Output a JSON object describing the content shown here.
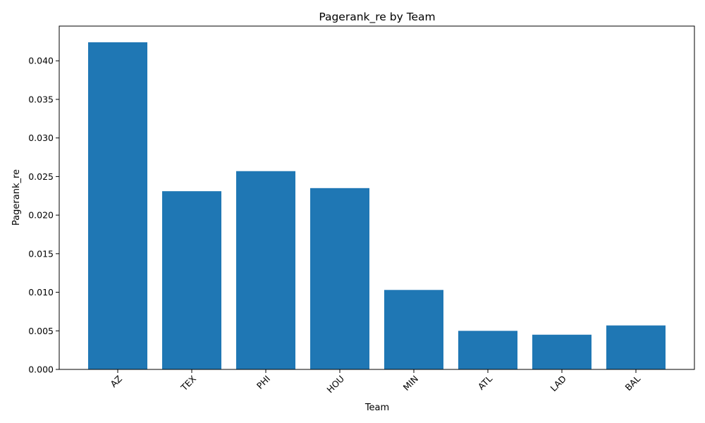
{
  "chart_data": {
    "type": "bar",
    "title": "Pagerank_re by Team",
    "xlabel": "Team",
    "ylabel": "Pagerank_re",
    "categories": [
      "AZ",
      "TEX",
      "PHI",
      "HOU",
      "MIN",
      "ATL",
      "LAD",
      "BAL"
    ],
    "values": [
      0.0424,
      0.0231,
      0.0257,
      0.0235,
      0.0103,
      0.005,
      0.0045,
      0.0057
    ],
    "ylim": [
      0,
      0.0445
    ],
    "yticks": [
      "0.000",
      "0.005",
      "0.010",
      "0.015",
      "0.020",
      "0.025",
      "0.030",
      "0.035",
      "0.040"
    ],
    "ytick_values": [
      0,
      0.005,
      0.01,
      0.015,
      0.02,
      0.025,
      0.03,
      0.035,
      0.04
    ],
    "bar_color": "#1f77b4",
    "grid": false,
    "legend": "none"
  }
}
